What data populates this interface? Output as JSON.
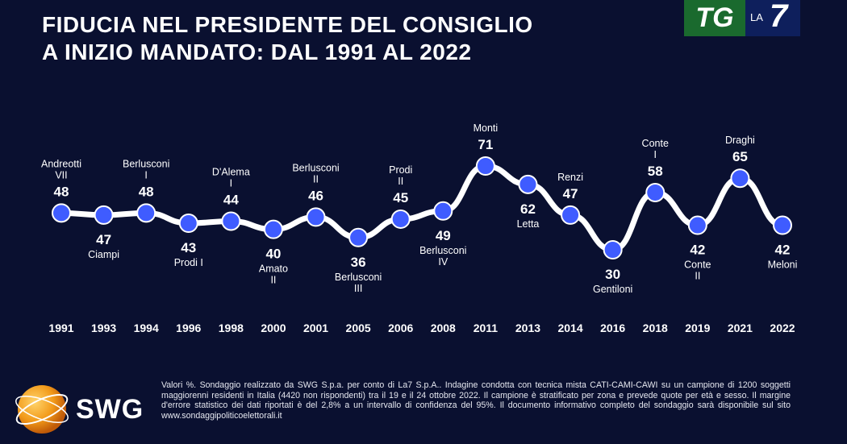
{
  "title": {
    "line1": "FIDUCIA NEL PRESIDENTE DEL CONSIGLIO",
    "line2": "A INIZIO MANDATO: DAL 1991 AL 2022"
  },
  "logos": {
    "tg_text": "TG",
    "la7_la": "LA",
    "la7_seven": "7",
    "swg": "SWG"
  },
  "chart_data": {
    "type": "line",
    "title": "FIDUCIA NEL PRESIDENTE DEL CONSIGLIO A INIZIO MANDATO: DAL 1991 AL 2022",
    "categories": [
      "1991",
      "1993",
      "1994",
      "1996",
      "1998",
      "2000",
      "2001",
      "2005",
      "2006",
      "2008",
      "2011",
      "2013",
      "2014",
      "2016",
      "2018",
      "2019",
      "2021",
      "2022"
    ],
    "series": [
      {
        "values": [
          48,
          47,
          48,
          43,
          44,
          40,
          46,
          36,
          45,
          49,
          71,
          62,
          47,
          30,
          58,
          42,
          65,
          42
        ]
      }
    ],
    "point_labels": [
      {
        "lines": [
          "Andreotti",
          "VII"
        ],
        "pos": "above"
      },
      {
        "lines": [
          "Ciampi"
        ],
        "pos": "below"
      },
      {
        "lines": [
          "Berlusconi",
          "I"
        ],
        "pos": "above"
      },
      {
        "lines": [
          "Prodi I"
        ],
        "pos": "below"
      },
      {
        "lines": [
          "D'Alema",
          "I"
        ],
        "pos": "above"
      },
      {
        "lines": [
          "Amato",
          "II"
        ],
        "pos": "below"
      },
      {
        "lines": [
          "Berlusconi",
          "II"
        ],
        "pos": "above"
      },
      {
        "lines": [
          "Berlusconi",
          "III"
        ],
        "pos": "below"
      },
      {
        "lines": [
          "Prodi",
          "II"
        ],
        "pos": "above"
      },
      {
        "lines": [
          "Berlusconi",
          "IV"
        ],
        "pos": "below"
      },
      {
        "lines": [
          "Monti"
        ],
        "pos": "above"
      },
      {
        "lines": [
          "Letta"
        ],
        "pos": "below"
      },
      {
        "lines": [
          "Renzi"
        ],
        "pos": "above"
      },
      {
        "lines": [
          "Gentiloni"
        ],
        "pos": "below"
      },
      {
        "lines": [
          "Conte",
          "I"
        ],
        "pos": "above"
      },
      {
        "lines": [
          "Conte",
          "II"
        ],
        "pos": "below"
      },
      {
        "lines": [
          "Draghi"
        ],
        "pos": "above"
      },
      {
        "lines": [
          "Meloni"
        ],
        "pos": "below"
      }
    ],
    "ylim": [
      30,
      71
    ],
    "grid": false,
    "legend": "none",
    "colors": {
      "line": "#ffffff",
      "marker": "#3f5cff",
      "text": "#ffffff",
      "background": "#0a1030"
    }
  },
  "footnote": "Valori %. Sondaggio realizzato da SWG S.p.a. per conto di La7 S.p.A.. Indagine condotta con tecnica mista CATI-CAMI-CAWI su un campione di 1200 soggetti maggiorenni residenti in Italia (4420 non rispondenti) tra il 19 e il 24 ottobre 2022. Il campione è stratificato per zona e prevede quote per età e sesso. Il margine d'errore statistico dei dati riportati è del 2,8% a un intervallo di confidenza del 95%. Il documento informativo completo del sondaggio sarà disponibile sul sito www.sondaggipoliticoelettorali.it"
}
